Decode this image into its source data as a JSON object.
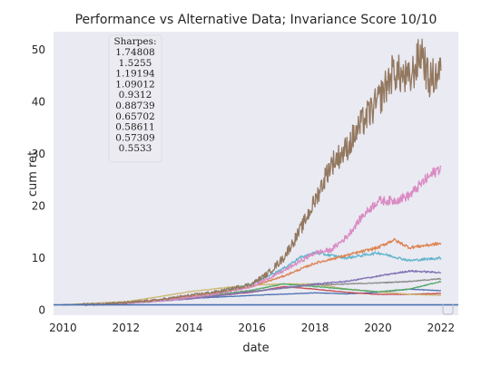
{
  "chart_data": {
    "type": "line",
    "title": "Performance vs Alternative Data; Invariance Score 10/10",
    "xlabel": "date",
    "ylabel": "cum ret",
    "xlim": [
      2009.7,
      2022.55
    ],
    "ylim": [
      -1.0,
      53.5
    ],
    "x_ticks": [
      2010,
      2012,
      2014,
      2016,
      2018,
      2020,
      2022
    ],
    "y_ticks": [
      0,
      10,
      20,
      30,
      40,
      50
    ],
    "grid": false,
    "background": "#eaeaf2",
    "annotation": {
      "title": "Sharpes:",
      "values": [
        "1.74808",
        "1.5255",
        "1.19194",
        "1.09012",
        "0.9312",
        "0.88739",
        "0.65702",
        "0.58611",
        "0.57309",
        "0.5533"
      ],
      "placement": "top-left"
    },
    "baseline": {
      "y": 1.0,
      "color": "#4c72b0"
    },
    "series": [
      {
        "color": "#937860",
        "vol": 1.0,
        "x": [
          2010,
          2011,
          2012,
          2013,
          2014,
          2015,
          2016,
          2016.5,
          2017,
          2017.5,
          2018,
          2018.5,
          2019,
          2019.5,
          2020,
          2020.5,
          2021,
          2021.4,
          2021.6,
          2021.8,
          2022
        ],
        "y": [
          1,
          1.1,
          1.4,
          1.9,
          2.8,
          3.6,
          5,
          7,
          10,
          15,
          21,
          28,
          31,
          36,
          40,
          46,
          44,
          50,
          44,
          45,
          46
        ]
      },
      {
        "color": "#da8bc3",
        "vol": 0.5,
        "x": [
          2010,
          2011,
          2012,
          2013,
          2014,
          2015,
          2016,
          2017,
          2018,
          2018.5,
          2019,
          2019.5,
          2020,
          2020.5,
          2021,
          2021.5,
          2022
        ],
        "y": [
          1,
          1.1,
          1.3,
          1.7,
          2.4,
          3.2,
          4.5,
          7.5,
          11,
          11.5,
          14,
          18,
          21,
          21,
          22,
          25,
          27.5
        ]
      },
      {
        "color": "#dd8452",
        "vol": 0.3,
        "x": [
          2010,
          2011,
          2012,
          2013,
          2014,
          2015,
          2016,
          2017,
          2018,
          2019,
          2020,
          2020.5,
          2021,
          2022
        ],
        "y": [
          1,
          1.1,
          1.4,
          1.9,
          2.6,
          3.4,
          4.5,
          6.5,
          9,
          10.5,
          12,
          13.5,
          12,
          12.8
        ]
      },
      {
        "color": "#64b5cd",
        "vol": 0.3,
        "x": [
          2010,
          2011,
          2012,
          2013,
          2014,
          2015,
          2016,
          2017,
          2017.5,
          2018,
          2019,
          2020,
          2021,
          2022
        ],
        "y": [
          1,
          1.1,
          1.4,
          1.9,
          2.6,
          3.5,
          5,
          8,
          10,
          11,
          10,
          11,
          9.5,
          10
        ]
      },
      {
        "color": "#8172b3",
        "vol": 0.25,
        "x": [
          2010,
          2012,
          2014,
          2016,
          2018,
          2019,
          2020,
          2021,
          2022
        ],
        "y": [
          1,
          1.3,
          2.1,
          3.5,
          5,
          5.5,
          6.5,
          7.5,
          7.2
        ]
      },
      {
        "color": "#8c8c8c",
        "vol": 0.2,
        "x": [
          2010,
          2012,
          2014,
          2016,
          2018,
          2020,
          2021,
          2022
        ],
        "y": [
          1,
          1.3,
          2.2,
          3.6,
          4.8,
          5.2,
          5.5,
          6
        ]
      },
      {
        "color": "#55a868",
        "vol": 0.2,
        "x": [
          2010,
          2012,
          2014,
          2016,
          2017,
          2018,
          2019,
          2020,
          2021,
          2022
        ],
        "y": [
          1,
          1.4,
          2.3,
          3.8,
          5,
          4.5,
          4,
          3.5,
          4,
          5.5
        ]
      },
      {
        "color": "#ccb974",
        "vol": 0.2,
        "x": [
          2010,
          2012,
          2013,
          2014,
          2015,
          2016,
          2017,
          2018,
          2019,
          2020,
          2021,
          2022
        ],
        "y": [
          1,
          1.6,
          2.5,
          3.5,
          4.2,
          4.8,
          5,
          5,
          4,
          3.5,
          3,
          2.8
        ]
      },
      {
        "color": "#c44e52",
        "vol": 0.15,
        "x": [
          2010,
          2012,
          2014,
          2016,
          2017,
          2018,
          2019,
          2020,
          2021,
          2022
        ],
        "y": [
          1,
          1.4,
          2.2,
          3.4,
          4.5,
          4,
          3.4,
          3,
          3,
          3.2
        ]
      },
      {
        "color": "#4c72b0",
        "vol": 0.15,
        "x": [
          2010,
          2012,
          2014,
          2016,
          2018,
          2019,
          2020,
          2021,
          2022
        ],
        "y": [
          1,
          1.4,
          2.2,
          2.8,
          3.3,
          3.1,
          3.4,
          4,
          3.7
        ]
      }
    ]
  }
}
